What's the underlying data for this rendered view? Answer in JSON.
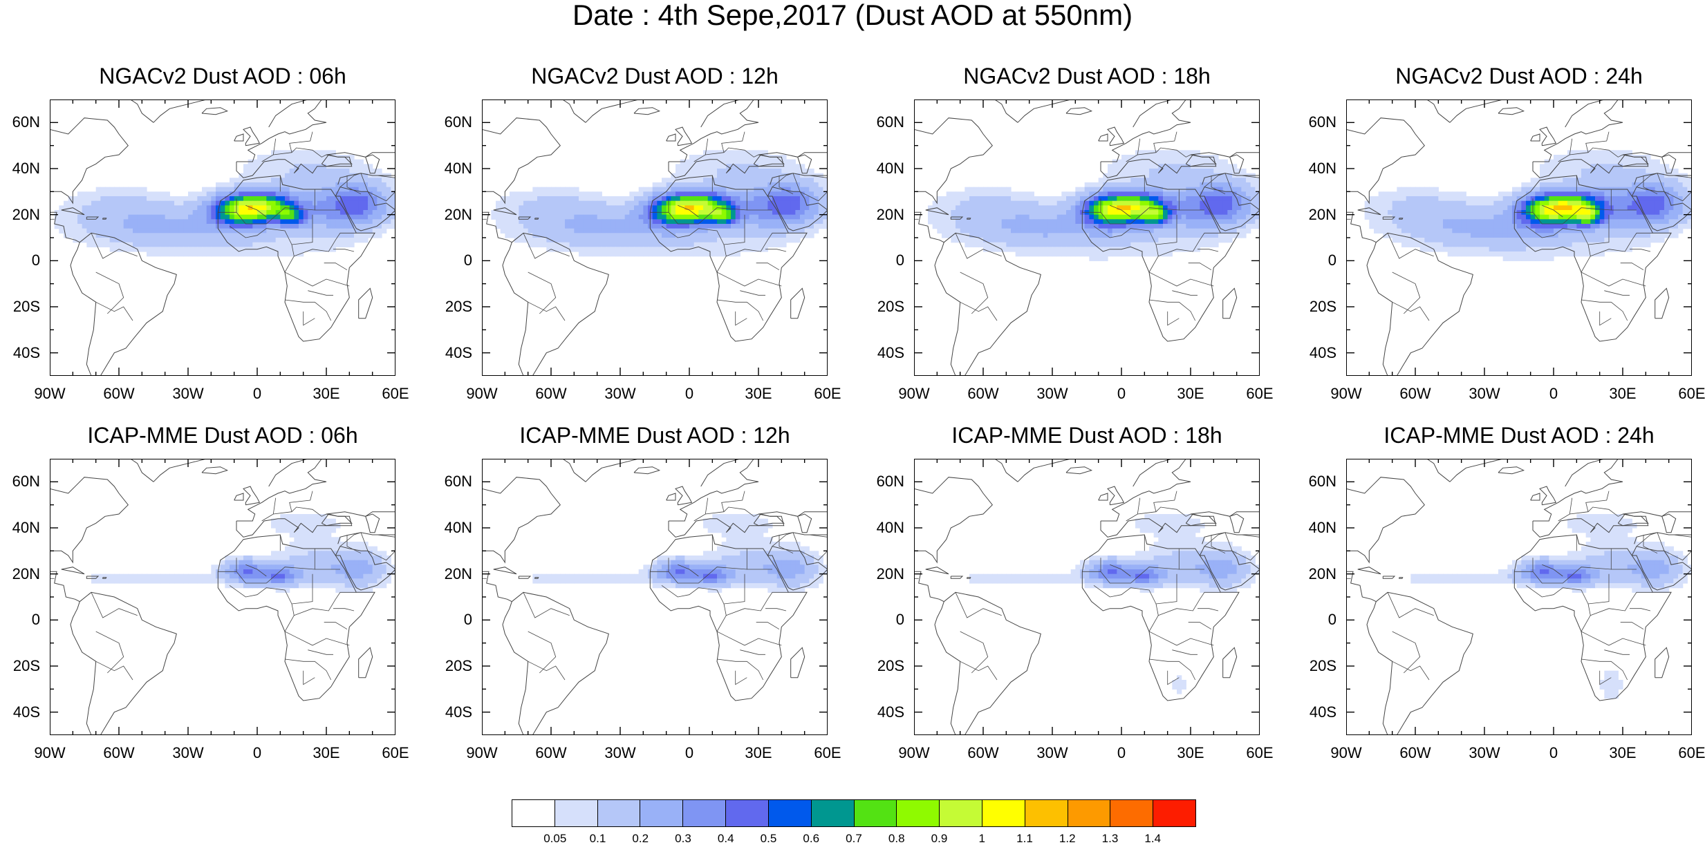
{
  "title": "Date : 4th Sepe,2017 (Dust AOD at 550nm)",
  "panels": [
    {
      "title": "NGACv2 Dust AOD : 06h",
      "model": "ngac",
      "shift": -2
    },
    {
      "title": "NGACv2 Dust AOD : 12h",
      "model": "ngac",
      "shift": 0
    },
    {
      "title": "NGACv2 Dust AOD : 18h",
      "model": "ngac",
      "shift": 1
    },
    {
      "title": "NGACv2 Dust AOD : 24h",
      "model": "ngac",
      "shift": 3
    },
    {
      "title": "ICAP-MME Dust AOD : 06h",
      "model": "icap",
      "shift": -2
    },
    {
      "title": "ICAP-MME Dust AOD : 12h",
      "model": "icap",
      "shift": 0
    },
    {
      "title": "ICAP-MME Dust AOD : 18h",
      "model": "icap",
      "shift": 1
    },
    {
      "title": "ICAP-MME Dust AOD : 24h",
      "model": "icap",
      "shift": 3
    }
  ],
  "axes": {
    "lon_range": [
      -90,
      60
    ],
    "lat_range": [
      -50,
      70
    ],
    "lon_ticks": [
      -90,
      -60,
      -30,
      0,
      30,
      60
    ],
    "lon_labels": [
      "90W",
      "60W",
      "30W",
      "0",
      "30E",
      "60E"
    ],
    "lat_ticks": [
      60,
      40,
      20,
      0,
      -20,
      -40
    ],
    "lat_labels": [
      "60N",
      "40N",
      "20N",
      "0",
      "20S",
      "40S"
    ]
  },
  "colorbar": {
    "levels": [
      "0.05",
      "0.1",
      "0.2",
      "0.3",
      "0.4",
      "0.5",
      "0.6",
      "0.7",
      "0.8",
      "0.9",
      "1",
      "1.1",
      "1.2",
      "1.3",
      "1.4"
    ],
    "colors": [
      "#ffffff",
      "#d6e0fb",
      "#b5c7f8",
      "#99b1f7",
      "#7f95f3",
      "#6169ee",
      "#0059ec",
      "#009790",
      "#53e213",
      "#8ffa00",
      "#c5fb35",
      "#ffff00",
      "#fdc000",
      "#fd9a00",
      "#fd6c00",
      "#fd1d00"
    ]
  }
}
